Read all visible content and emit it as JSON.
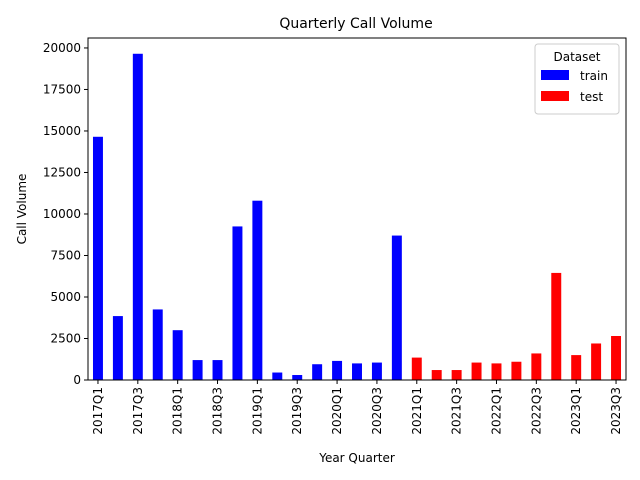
{
  "chart_data": {
    "type": "bar",
    "title": "Quarterly Call Volume",
    "xlabel": "Year Quarter",
    "ylabel": "Call Volume",
    "ylim": [
      0,
      20600
    ],
    "yticks": [
      0,
      2500,
      5000,
      7500,
      10000,
      12500,
      15000,
      17500,
      20000
    ],
    "ytick_labels": [
      "0",
      "2500",
      "5000",
      "7500",
      "10000",
      "12500",
      "15000",
      "17500",
      "20000"
    ],
    "categories": [
      "2017Q1",
      "2017Q2",
      "2017Q3",
      "2017Q4",
      "2018Q1",
      "2018Q2",
      "2018Q3",
      "2018Q4",
      "2019Q1",
      "2019Q2",
      "2019Q3",
      "2019Q4",
      "2020Q1",
      "2020Q2",
      "2020Q3",
      "2020Q4",
      "2021Q1",
      "2021Q2",
      "2021Q3",
      "2021Q4",
      "2022Q1",
      "2022Q2",
      "2022Q3",
      "2022Q4",
      "2023Q1",
      "2023Q2",
      "2023Q3"
    ],
    "xtick_labels": [
      "2017Q1",
      "2017Q3",
      "2018Q1",
      "2018Q3",
      "2019Q1",
      "2019Q3",
      "2020Q1",
      "2020Q3",
      "2021Q1",
      "2021Q3",
      "2022Q1",
      "2022Q3",
      "2023Q1",
      "2023Q3"
    ],
    "values": [
      14650,
      3850,
      19650,
      4250,
      3000,
      1200,
      1200,
      9250,
      10800,
      450,
      300,
      950,
      1150,
      1000,
      1050,
      8700,
      1350,
      600,
      600,
      1050,
      1000,
      1100,
      1600,
      6450,
      1500,
      2200,
      2650
    ],
    "datasets": [
      "train",
      "train",
      "train",
      "train",
      "train",
      "train",
      "train",
      "train",
      "train",
      "train",
      "train",
      "train",
      "train",
      "train",
      "train",
      "train",
      "test",
      "test",
      "test",
      "test",
      "test",
      "test",
      "test",
      "test",
      "test",
      "test",
      "test"
    ],
    "legend": {
      "title": "Dataset",
      "placement": "top-right",
      "entries": [
        {
          "name": "train",
          "color": "#0000ff"
        },
        {
          "name": "test",
          "color": "#ff0000"
        }
      ]
    },
    "grid": false
  }
}
